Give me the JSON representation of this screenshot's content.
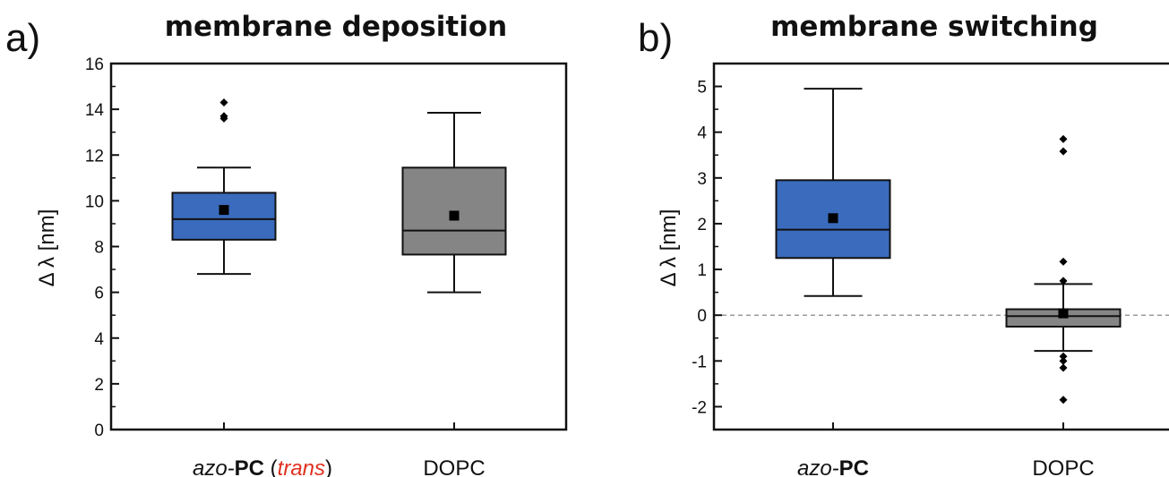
{
  "panels": [
    {
      "letter": "a)",
      "title": "membrane deposition"
    },
    {
      "letter": "b)",
      "title": "membrane switching"
    }
  ],
  "colors": {
    "azo_box": "#3a6bbd",
    "dopc_box": "#858585",
    "trans_text": "#e0311f"
  },
  "chart_data": [
    {
      "type": "box",
      "title": "membrane deposition",
      "ylabel": "Δ λ [nm]",
      "ylim": [
        0,
        16
      ],
      "yticks": [
        0,
        2,
        4,
        6,
        8,
        10,
        12,
        14,
        16
      ],
      "zero_line": false,
      "categories": [
        {
          "prefix": "azo-",
          "bold": "PC",
          "paren_open": " (",
          "highlight": "trans",
          "paren_close": ")"
        },
        {
          "text": "DOPC"
        }
      ],
      "series": [
        {
          "color": "#3a6bbd",
          "whisker_low": 6.8,
          "q1": 8.3,
          "median": 9.2,
          "q3": 10.35,
          "whisker_high": 11.45,
          "mean": 9.6,
          "outliers": [
            13.6,
            13.7,
            14.3
          ]
        },
        {
          "color": "#858585",
          "whisker_low": 6.0,
          "q1": 7.65,
          "median": 8.7,
          "q3": 11.45,
          "whisker_high": 13.85,
          "mean": 9.35,
          "outliers": []
        }
      ]
    },
    {
      "type": "box",
      "title": "membrane switching",
      "ylabel": "Δ λ [nm]",
      "ylim": [
        -2.5,
        5.5
      ],
      "yticks": [
        -2,
        -1,
        0,
        1,
        2,
        3,
        4,
        5
      ],
      "zero_line": true,
      "categories": [
        {
          "prefix": "azo-",
          "bold": "PC"
        },
        {
          "text": "DOPC"
        }
      ],
      "series": [
        {
          "color": "#3a6bbd",
          "whisker_low": 0.42,
          "q1": 1.25,
          "median": 1.87,
          "q3": 2.95,
          "whisker_high": 4.95,
          "mean": 2.12,
          "outliers": []
        },
        {
          "color": "#858585",
          "whisker_low": -0.78,
          "q1": -0.25,
          "median": -0.02,
          "q3": 0.13,
          "whisker_high": 0.68,
          "mean": 0.04,
          "outliers": [
            3.85,
            3.58,
            1.17,
            0.75,
            -0.9,
            -1.0,
            -1.15,
            -1.85
          ]
        }
      ]
    }
  ]
}
